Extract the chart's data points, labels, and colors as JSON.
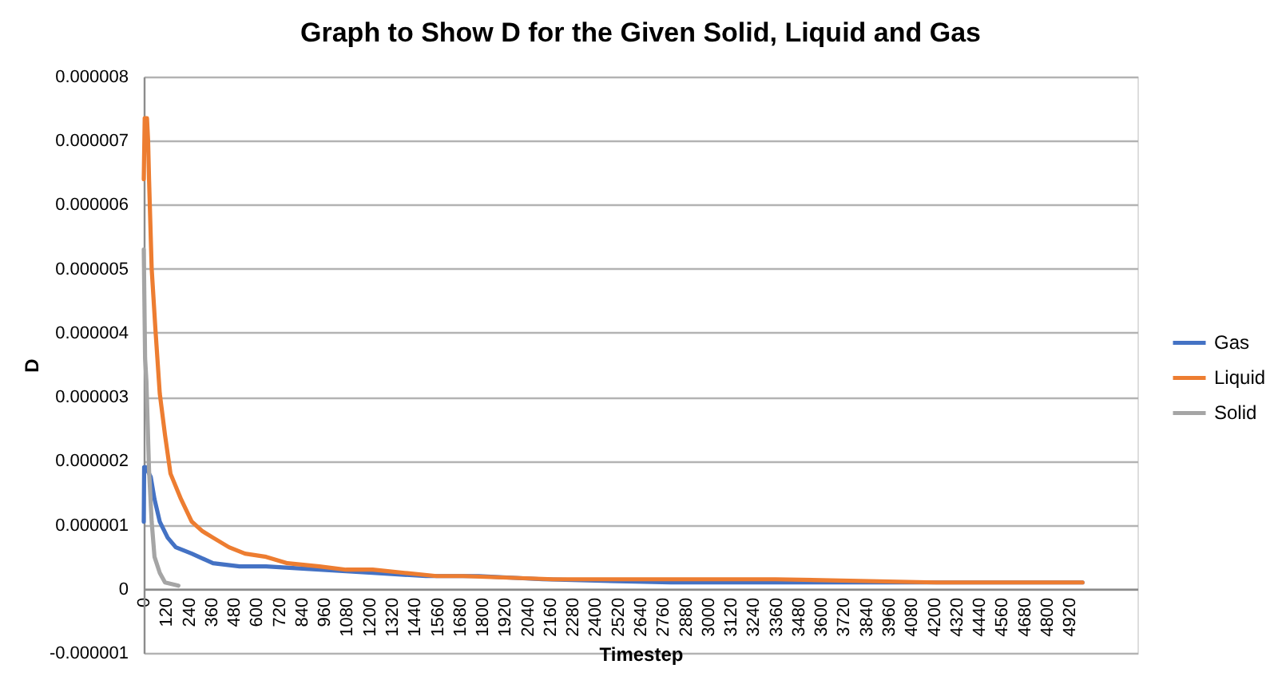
{
  "chart_data": {
    "type": "line",
    "title": "Graph to Show D for the Given Solid, Liquid and Gas",
    "xlabel": "Timestep",
    "ylabel": "D",
    "xlim": [
      0,
      5280
    ],
    "xticks": [
      0,
      120,
      240,
      360,
      480,
      600,
      720,
      840,
      960,
      1080,
      1200,
      1320,
      1440,
      1560,
      1680,
      1800,
      1920,
      2040,
      2160,
      2280,
      2400,
      2520,
      2640,
      2760,
      2880,
      3000,
      3120,
      3240,
      3360,
      3480,
      3600,
      3720,
      3840,
      3960,
      4080,
      4200,
      4320,
      4440,
      4560,
      4680,
      4800,
      4920
    ],
    "ylim": [
      -1e-06,
      8e-06
    ],
    "yticks": [
      {
        "value": -1e-06,
        "label": "-0.000001"
      },
      0,
      {
        "value": 1e-06,
        "label": "0.000001"
      },
      {
        "value": 2e-06,
        "label": "0.000002"
      },
      {
        "value": 3e-06,
        "label": "0.000003"
      },
      {
        "value": 4e-06,
        "label": "0.000004"
      },
      {
        "value": 5e-06,
        "label": "0.000005"
      },
      {
        "value": 6e-06,
        "label": "0.000006"
      },
      {
        "value": 7e-06,
        "label": "0.000007"
      },
      {
        "value": 8e-06,
        "label": "0.000008"
      }
    ],
    "grid": "y",
    "legend": "right",
    "series": [
      {
        "name": "Gas",
        "color": "#4472c4",
        "x": [
          0,
          2,
          10,
          37,
          57,
          85,
          127,
          170,
          255,
          368,
          509,
          650,
          933,
          1216,
          1499,
          1782,
          2120,
          2800,
          3600,
          4988
        ],
        "values": [
          1.05e-06,
          1.9e-06,
          1.9e-06,
          1.75e-06,
          1.4e-06,
          1.05e-06,
          8e-07,
          6.5e-07,
          5.5e-07,
          4e-07,
          3.5e-07,
          3.5e-07,
          3e-07,
          2.5e-07,
          2e-07,
          2e-07,
          1.5e-07,
          1e-07,
          1e-07,
          1e-07
        ]
      },
      {
        "name": "Liquid",
        "color": "#ed7d31",
        "x": [
          0,
          5,
          17,
          23,
          28,
          42,
          62,
          85,
          113,
          142,
          198,
          255,
          312,
          368,
          453,
          538,
          650,
          764,
          933,
          1075,
          1216,
          1386,
          1556,
          1697,
          2176,
          2791,
          3357,
          4212,
          4988
        ],
        "values": [
          6.4e-06,
          7.35e-06,
          7.35e-06,
          7e-06,
          6.4e-06,
          5e-06,
          4.05e-06,
          3.05e-06,
          2.4e-06,
          1.8e-06,
          1.4e-06,
          1.05e-06,
          9e-07,
          8e-07,
          6.5e-07,
          5.5e-07,
          5e-07,
          4e-07,
          3.5e-07,
          3e-07,
          3e-07,
          2.5e-07,
          2e-07,
          2e-07,
          1.5e-07,
          1.5e-07,
          1.5e-07,
          1e-07,
          1e-07
        ]
      },
      {
        "name": "Solid",
        "color": "#a5a5a5",
        "x": [
          0,
          7,
          14,
          28,
          42,
          57,
          85,
          113,
          184
        ],
        "values": [
          5.3e-06,
          3.6e-06,
          3.25e-06,
          1.85e-06,
          1.05e-06,
          5e-07,
          2.5e-07,
          1e-07,
          5e-08
        ]
      }
    ]
  }
}
